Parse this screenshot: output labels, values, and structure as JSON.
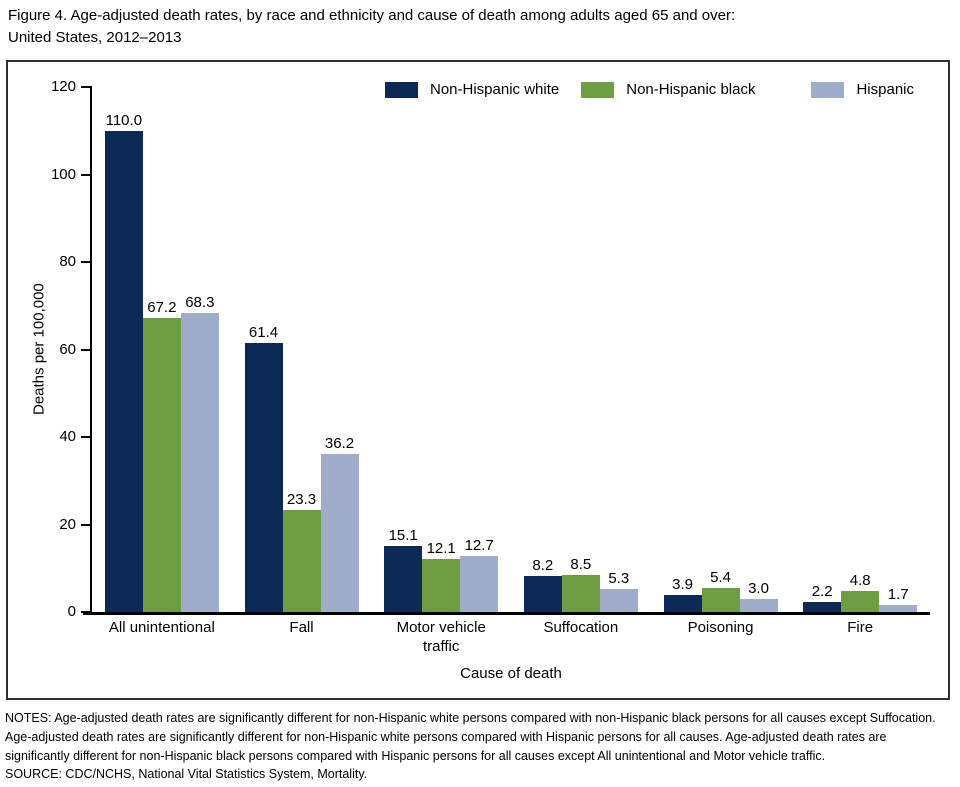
{
  "figure": {
    "title_line1": "Figure 4. Age-adjusted death rates, by race and ethnicity and cause of death among adults aged 65 and over:",
    "title_line2": "United States, 2012–2013"
  },
  "chart_data": {
    "type": "bar",
    "title": "Figure 4. Age-adjusted death rates, by race and ethnicity and cause of death among adults aged 65 and over: United States, 2012–2013",
    "categories": [
      "All unintentional",
      "Fall",
      "Motor vehicle\ntraffic",
      "Suffocation",
      "Poisoning",
      "Fire"
    ],
    "series": [
      {
        "name": "Non-Hispanic white",
        "color": "#0d2a56",
        "values": [
          110.0,
          61.4,
          15.1,
          8.2,
          3.9,
          2.2
        ]
      },
      {
        "name": "Non-Hispanic black",
        "color": "#6f9d44",
        "values": [
          67.2,
          23.3,
          12.1,
          8.5,
          5.4,
          4.8
        ]
      },
      {
        "name": "Hispanic",
        "color": "#a0adca",
        "values": [
          68.3,
          36.2,
          12.7,
          5.3,
          3.0,
          1.7
        ]
      }
    ],
    "xlabel": "Cause of death",
    "ylabel": "Deaths per 100,000",
    "ylim": [
      0,
      120
    ],
    "y_ticks": [
      0,
      20,
      40,
      60,
      80,
      100,
      120
    ],
    "grid": "off",
    "legend_position": "top",
    "value_label_decimals": 1
  },
  "notes": {
    "text": "NOTES: Age-adjusted death rates are significantly different for non-Hispanic white persons compared with non-Hispanic black persons for all causes except Suffocation. Age-adjusted death rates are significantly different for non-Hispanic white persons compared with Hispanic persons for all causes. Age-adjusted death rates are significantly different for non-Hispanic black persons compared with Hispanic persons for all causes except All unintentional and Motor vehicle traffic.",
    "source": "SOURCE: CDC/NCHS, National Vital Statistics System, Mortality."
  }
}
